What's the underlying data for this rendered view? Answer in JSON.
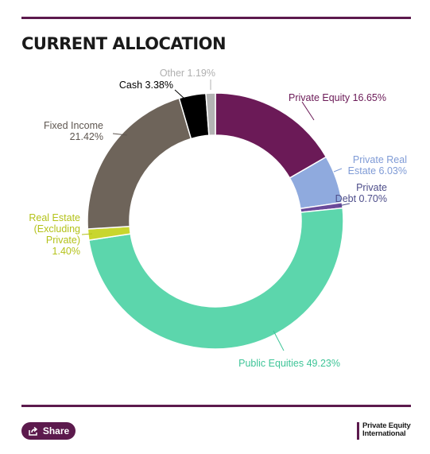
{
  "header": {
    "title": "CURRENT ALLOCATION"
  },
  "chart_data": {
    "type": "pie",
    "title": "CURRENT ALLOCATION",
    "slices": [
      {
        "name": "Private Equity",
        "value": 16.65,
        "label_lines": [
          "Private Equity 16.65%"
        ],
        "color": "#6b1a57",
        "label_color": "#6b1a57"
      },
      {
        "name": "Private Real Estate",
        "value": 6.03,
        "label_lines": [
          "Private Real",
          "Estate 6.03%"
        ],
        "color": "#8faade",
        "label_color": "#7f9bd6"
      },
      {
        "name": "Private Debt",
        "value": 0.7,
        "label_lines": [
          "Private",
          "Debt 0.70%"
        ],
        "color": "#6a4a9a",
        "label_color": "#4d4d8a"
      },
      {
        "name": "Public Equities",
        "value": 49.23,
        "label_lines": [
          "Public Equities 49.23%"
        ],
        "color": "#5cd6ac",
        "label_color": "#3fc598"
      },
      {
        "name": "Real Estate (Excluding Private)",
        "value": 1.4,
        "label_lines": [
          "Real Estate",
          "(Excluding",
          "Private)",
          "1.40%"
        ],
        "color": "#c8d62e",
        "label_color": "#b4c21a"
      },
      {
        "name": "Fixed Income",
        "value": 21.42,
        "label_lines": [
          "Fixed Income",
          "21.42%"
        ],
        "color": "#6e645a",
        "label_color": "#5f5751"
      },
      {
        "name": "Cash",
        "value": 3.38,
        "label_lines": [
          "Cash 3.38%"
        ],
        "color": "#000000",
        "label_color": "#000000"
      },
      {
        "name": "Other",
        "value": 1.19,
        "label_lines": [
          "Other 1.19%"
        ],
        "color": "#b3b3b3",
        "label_color": "#b0b0b0"
      }
    ]
  },
  "footer": {
    "share_label": "Share",
    "brand_line1": "Private Equity",
    "brand_line2": "International"
  },
  "colors": {
    "accent": "#5c1a4d"
  }
}
